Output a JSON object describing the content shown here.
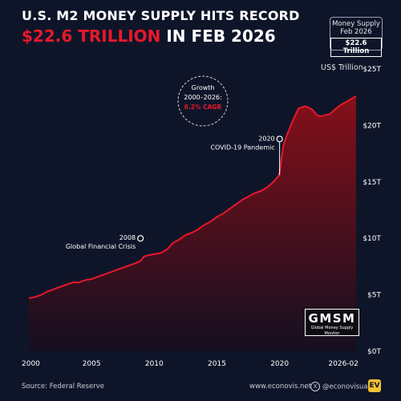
{
  "header": {
    "title_line1": "U.S. M2 MONEY SUPPLY HITS RECORD",
    "title_line2_highlight": "$22.6 TRILLION",
    "title_line2_rest": " IN FEB 2026"
  },
  "badge": {
    "line1": "Money Supply",
    "line2": "Feb 2026",
    "value": "$22.6 Trillion"
  },
  "units_label": "US$ Trillion",
  "growth_callout": {
    "line1": "Growth",
    "line2": "2000–2026:",
    "line3": "6.2% CAGR"
  },
  "annotations": [
    {
      "year_label": "2008",
      "text": "Global Financial Crisis",
      "x": 2008.9,
      "y": 10.0
    },
    {
      "year_label": "2020",
      "text": "COVID-19 Pandemic",
      "x": 2020.0,
      "y": 18.8
    }
  ],
  "logo": {
    "big": "GMSM",
    "small": "Global Money Supply Monitor"
  },
  "footer": {
    "source": "Source: Federal Reserve",
    "website": "www.econovis.net",
    "x_handle": "@econovisuals",
    "x_icon_glyph": "X",
    "logo_text": "EV"
  },
  "colors": {
    "background": "#0f1529",
    "line": "#e8182a",
    "area_top": "#8c0f18",
    "area_bottom": "#140f20",
    "accent": "#e8182a"
  },
  "chart_data": {
    "type": "area",
    "title": "U.S. M2 MONEY SUPPLY HITS RECORD",
    "ylabel": "US$ Trillion",
    "xlabel": "",
    "xlim": [
      2000,
      2026.1
    ],
    "ylim": [
      0,
      25
    ],
    "x_tick_labels": [
      "2000",
      "2005",
      "2010",
      "2015",
      "2020",
      "2026-02"
    ],
    "x_tick_values": [
      2000,
      2005,
      2010,
      2015,
      2020,
      2026.1
    ],
    "y_tick_labels": [
      "$0T",
      "$5T",
      "$10T",
      "$15T",
      "$20T",
      "$25T"
    ],
    "y_tick_values": [
      0,
      5,
      10,
      15,
      20,
      25
    ],
    "grid": false,
    "series": [
      {
        "x": [
          2000.0,
          2000.5,
          2001.0,
          2001.5,
          2002.0,
          2002.5,
          2003.0,
          2003.5,
          2004.0,
          2004.5,
          2005.0,
          2005.5,
          2006.0,
          2006.5,
          2007.0,
          2007.5,
          2008.0,
          2008.5,
          2008.9,
          2009.2,
          2009.5,
          2010.0,
          2010.5,
          2011.0,
          2011.5,
          2012.0,
          2012.5,
          2013.0,
          2013.5,
          2014.0,
          2014.5,
          2015.0,
          2015.5,
          2016.0,
          2016.5,
          2017.0,
          2017.5,
          2018.0,
          2018.5,
          2019.0,
          2019.5,
          2019.9,
          2020.0,
          2020.3,
          2020.6,
          2021.0,
          2021.5,
          2022.0,
          2022.3,
          2022.6,
          2023.0,
          2023.3,
          2023.6,
          2024.0,
          2024.5,
          2025.0,
          2025.5,
          2026.1
        ],
        "values": [
          4.7,
          4.8,
          5.0,
          5.3,
          5.5,
          5.7,
          5.9,
          6.1,
          6.1,
          6.3,
          6.4,
          6.6,
          6.8,
          7.0,
          7.2,
          7.4,
          7.6,
          7.8,
          8.0,
          8.4,
          8.5,
          8.6,
          8.7,
          9.0,
          9.6,
          9.9,
          10.3,
          10.5,
          10.8,
          11.2,
          11.5,
          11.9,
          12.2,
          12.6,
          13.0,
          13.4,
          13.7,
          14.0,
          14.2,
          14.5,
          15.0,
          15.5,
          15.8,
          18.2,
          19.2,
          20.3,
          21.5,
          21.7,
          21.6,
          21.4,
          20.9,
          20.8,
          20.9,
          21.0,
          21.5,
          21.9,
          22.2,
          22.6
        ]
      }
    ]
  }
}
